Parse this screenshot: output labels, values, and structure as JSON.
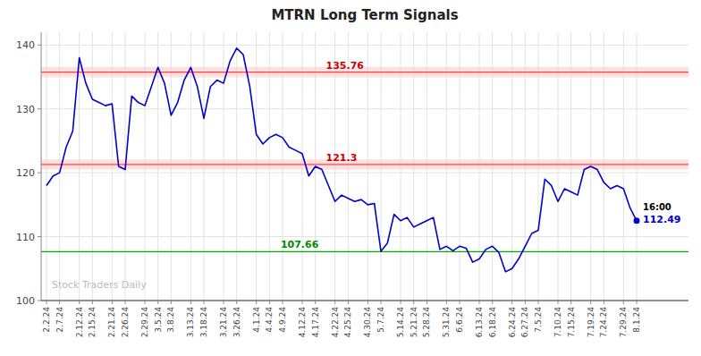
{
  "chart_data": {
    "type": "line",
    "title": "MTRN Long Term Signals",
    "color": "#0000cc",
    "ylim": [
      100,
      142
    ],
    "yticks": [
      100,
      110,
      120,
      130,
      140
    ],
    "grid": true,
    "watermark": "Stock Traders Daily",
    "last_label": "16:00",
    "last_price": 112.49,
    "reference_lines": [
      {
        "value": 135.76,
        "color": "#ff4444",
        "label_color": "#cc0000",
        "band_color": "#ffcccc"
      },
      {
        "value": 121.3,
        "color": "#ff4444",
        "label_color": "#cc0000",
        "band_color": "#ffcccc"
      },
      {
        "value": 107.66,
        "color": "#00aa00",
        "label_color": "#008800"
      }
    ],
    "categories": [
      "2.2.24",
      null,
      "2.7.24",
      null,
      null,
      "2.12.24",
      null,
      "2.15.24",
      null,
      null,
      "2.21.24",
      null,
      "2.26.24",
      null,
      null,
      "2.29.24",
      null,
      "3.5.24",
      null,
      "3.8.24",
      null,
      null,
      "3.13.24",
      null,
      "3.18.24",
      null,
      null,
      "3.21.24",
      null,
      "3.26.24",
      null,
      null,
      "4.1.24",
      null,
      "4.4.24",
      null,
      "4.9.24",
      null,
      null,
      "4.12.24",
      null,
      "4.17.24",
      null,
      null,
      "4.22.24",
      null,
      "4.25.24",
      null,
      null,
      "4.30.24",
      null,
      "5.7.24",
      null,
      null,
      "5.14.24",
      null,
      "5.21.24",
      null,
      "5.28.24",
      null,
      null,
      "5.31.24",
      null,
      "6.6.24",
      null,
      null,
      "6.13.24",
      null,
      "6.18.24",
      null,
      null,
      "6.24.24",
      null,
      "6.27.24",
      null,
      "7.5.24",
      null,
      null,
      "7.10.24",
      null,
      "7.15.24",
      null,
      null,
      "7.19.24",
      null,
      "7.24.24",
      null,
      null,
      "7.29.24",
      null,
      "8.1.24"
    ],
    "values": [
      118.0,
      119.5,
      120.0,
      124.0,
      126.5,
      138.0,
      134.0,
      131.5,
      131.0,
      130.5,
      130.8,
      121.0,
      120.5,
      132.0,
      131.0,
      130.5,
      133.5,
      136.5,
      134.0,
      129.0,
      131.0,
      134.5,
      136.5,
      133.5,
      128.5,
      133.5,
      134.5,
      134.0,
      137.5,
      139.5,
      138.5,
      133.5,
      126.0,
      124.5,
      125.5,
      126.0,
      125.5,
      124.0,
      123.5,
      123.0,
      119.5,
      121.0,
      120.5,
      118.0,
      115.5,
      116.5,
      116.0,
      115.5,
      115.8,
      115.0,
      115.2,
      107.7,
      109.0,
      113.5,
      112.5,
      113.0,
      111.5,
      112.0,
      112.5,
      113.0,
      108.0,
      108.5,
      107.8,
      108.5,
      108.2,
      106.0,
      106.5,
      108.0,
      108.5,
      107.5,
      104.5,
      105.0,
      106.5,
      108.5,
      110.5,
      111.0,
      119.0,
      118.0,
      115.5,
      117.5,
      117.0,
      116.5,
      120.5,
      121.0,
      120.5,
      118.5,
      117.5,
      118.0,
      117.5,
      114.5,
      112.49
    ]
  }
}
